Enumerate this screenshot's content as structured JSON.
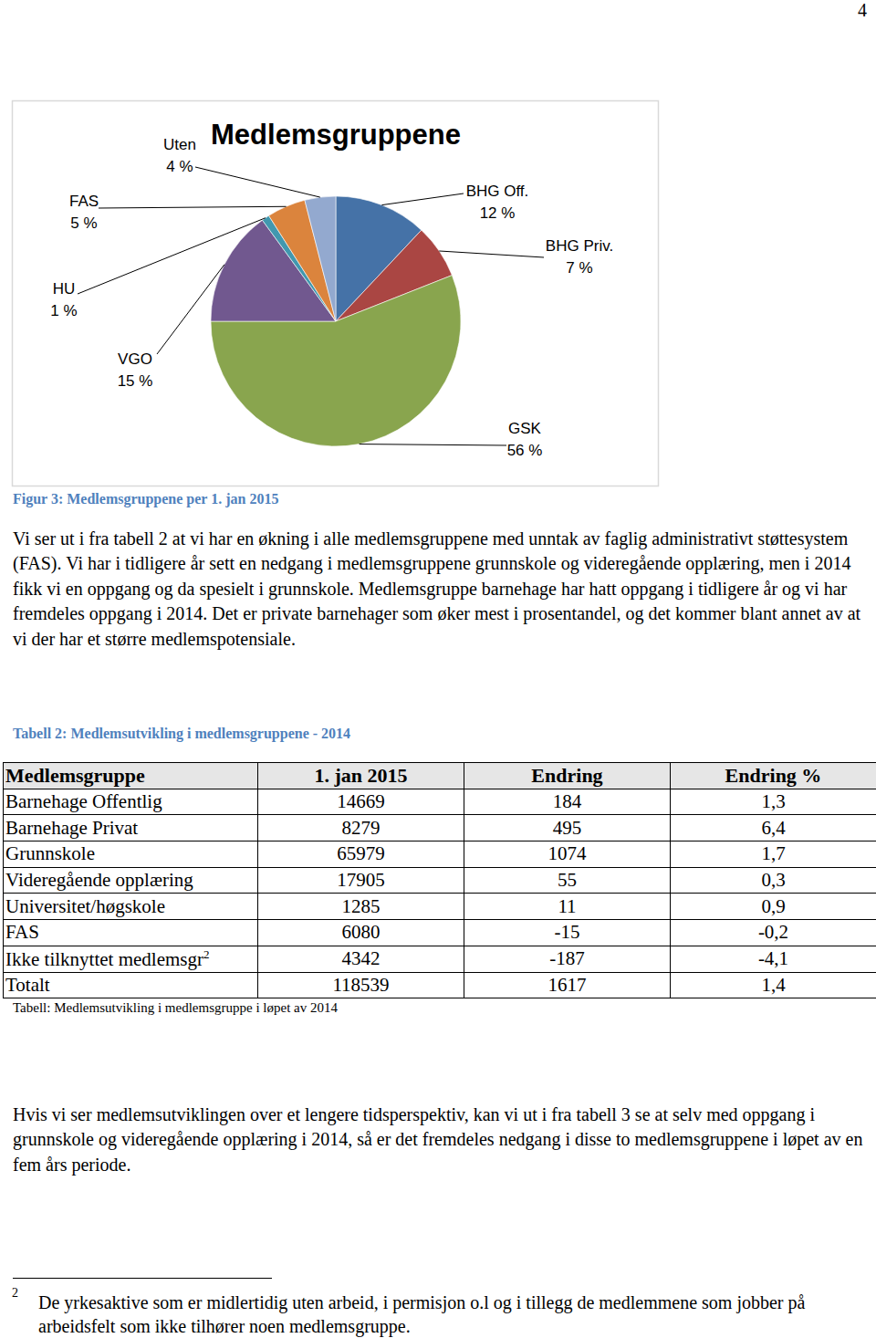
{
  "page_number": "4",
  "chart_data": {
    "type": "pie",
    "title": "Medlemsgruppene",
    "categories": [
      "BHG Off.",
      "BHG Priv.",
      "GSK",
      "VGO",
      "HU",
      "FAS",
      "Uten"
    ],
    "values": [
      12,
      7,
      56,
      15,
      1,
      5,
      4
    ],
    "value_labels": [
      "12 %",
      "7 %",
      "56 %",
      "15 %",
      "1 %",
      "5 %",
      "4 %"
    ],
    "colors": [
      "#4572a7",
      "#aa4643",
      "#89a54e",
      "#71588f",
      "#4198af",
      "#db843d",
      "#93a9cf"
    ],
    "data_labels": true
  },
  "figure_caption": "Figur 3: Medlemsgruppene per 1. jan 2015",
  "paragraphs": [
    "Vi ser ut i fra tabell 2 at vi har en økning i alle medlemsgruppene med unntak av faglig administrativt støttesystem (FAS). Vi har i tidligere år sett en nedgang i medlemsgruppene grunnskole og videregående opplæring, men i 2014 fikk vi en oppgang og da spesielt i grunnskole. Medlemsgruppe barnehage har hatt oppgang i tidligere år og vi har fremdeles oppgang i 2014. Det er private barnehager som øker mest i prosentandel, og det kommer blant annet av at vi der har et større medlemspotensiale.",
    "Hvis vi ser medlemsutviklingen over et lengere tidsperspektiv, kan vi ut i fra tabell 3 se at selv med oppgang i grunnskole og videregående opplæring i 2014, så er det fremdeles nedgang i disse to medlemsgruppene i løpet av en fem års periode."
  ],
  "table_caption": "Tabell 2: Medlemsutvikling i medlemsgruppene - 2014",
  "table": {
    "header": [
      "Medlemsgruppe",
      "1. jan 2015",
      "Endring",
      "Endring %"
    ],
    "rows": [
      [
        "Barnehage Offentlig",
        "14669",
        "184",
        "1,3"
      ],
      [
        "Barnehage Privat",
        "8279",
        "495",
        "6,4"
      ],
      [
        "Grunnskole",
        "65979",
        "1074",
        "1,7"
      ],
      [
        "Videregående opplæring",
        "17905",
        "55",
        "0,3"
      ],
      [
        "Universitet/høgskole",
        "1285",
        "11",
        "0,9"
      ],
      [
        "FAS",
        "6080",
        "-15",
        "-0,2"
      ],
      [
        {
          "text": "Ikke tilknyttet medlemsgr",
          "sup": "2"
        },
        "4342",
        "-187",
        "-4,1"
      ],
      [
        "Totalt",
        "118539",
        "1617",
        "1,4"
      ]
    ]
  },
  "table_note": "Tabell: Medlemsutvikling i medlemsgruppe i løpet av 2014",
  "footnote": {
    "marker": "2",
    "text": "De yrkesaktive som er midlertidig uten arbeid, i permisjon o.l og i tillegg de medlemmene som jobber på arbeidsfelt som ikke tilhører noen medlemsgruppe."
  }
}
